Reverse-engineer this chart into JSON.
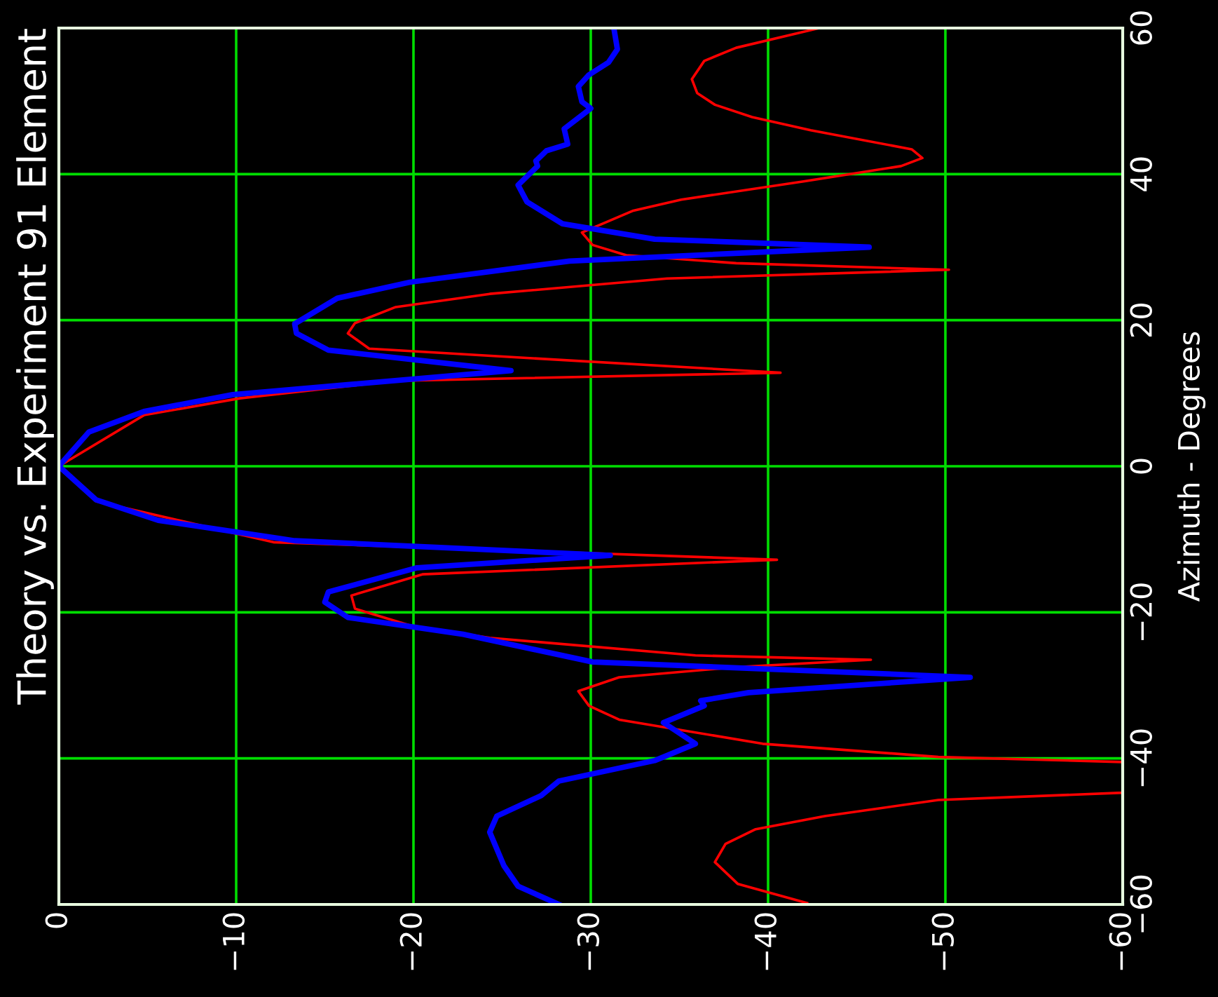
{
  "chart_data": {
    "type": "line",
    "title": "Theory vs. Experiment 91 Element",
    "ylabel": "Azimuth - Degrees",
    "ylim": [
      -60,
      60
    ],
    "yticks": [
      {
        "value": -60,
        "label": "−60"
      },
      {
        "value": -40,
        "label": "−40"
      },
      {
        "value": -20,
        "label": "−20"
      },
      0,
      20,
      40,
      60
    ],
    "xlim": [
      0,
      -60
    ],
    "xticks": [
      {
        "value": -60,
        "label": "−60"
      },
      {
        "value": -50,
        "label": "−50"
      },
      {
        "value": -40,
        "label": "−40"
      },
      {
        "value": -30,
        "label": "−30"
      },
      {
        "value": -20,
        "label": "−20"
      },
      {
        "value": -10,
        "label": "−10"
      },
      0
    ],
    "grid": true,
    "marker": "none",
    "line_style": "solid",
    "series": [
      {
        "color": "#ff0000",
        "values": [
          -59.8,
          -57.2,
          -54.2,
          -51.7,
          -49.7,
          -47.9,
          -45.7,
          -44.7,
          -40.5,
          -39.8,
          -38.0,
          -34.7,
          -32.8,
          -30.8,
          -28.9,
          -27.5,
          -26.5,
          -25.9,
          -23.5,
          -21.8,
          -19.5,
          -17.7,
          -14.8,
          -12.8,
          -10.4,
          -4.8,
          0,
          7.0,
          9.3,
          11.7,
          12.8,
          16.1,
          18.2,
          19.6,
          21.8,
          23.6,
          25.7,
          26.9,
          27.8,
          28.9,
          30.3,
          32.0,
          35.0,
          36.5,
          39.0,
          41.1,
          42.2,
          43.4,
          46.0,
          47.8,
          49.5,
          51.1,
          53.0,
          55.5,
          57.3,
          60.0
        ],
        "x": [
          -42.2,
          -38.3,
          -37.0,
          -37.6,
          -39.3,
          -43.2,
          -49.6,
          -60,
          -60,
          -49.6,
          -39.7,
          -31.6,
          -29.9,
          -29.3,
          -31.6,
          -38.2,
          -45.8,
          -35.9,
          -24.3,
          -19.8,
          -16.7,
          -16.5,
          -20.5,
          -40.5,
          -12.1,
          -2.1,
          0,
          -4.8,
          -10.2,
          -19.0,
          -40.7,
          -17.5,
          -16.3,
          -16.7,
          -19.0,
          -24.3,
          -34.3,
          -50.2,
          -38.2,
          -32.0,
          -30.1,
          -29.5,
          -32.4,
          -35.1,
          -42.0,
          -47.5,
          -48.7,
          -48.1,
          -42.4,
          -39.1,
          -37.0,
          -36.0,
          -35.7,
          -36.4,
          -38.2,
          -42.9
        ]
      },
      {
        "color": "#0000ff",
        "values": [
          -60.0,
          -57.5,
          -54.7,
          -50.1,
          -47.9,
          -45.1,
          -43.1,
          -40.3,
          -38.0,
          -35.1,
          -32.8,
          -32.1,
          -31.0,
          -28.9,
          -26.8,
          -23.0,
          -20.7,
          -18.6,
          -17.2,
          -13.9,
          -12.2,
          -10.2,
          -7.4,
          -4.6,
          0,
          4.7,
          7.5,
          9.8,
          13.1,
          15.9,
          18.2,
          19.5,
          23.0,
          25.2,
          28.1,
          30.0,
          31.1,
          33.2,
          36.2,
          38.5,
          41.1,
          41.8,
          43.2,
          44.1,
          46.2,
          49.0,
          49.9,
          52.0,
          53.6,
          55.3,
          57.1,
          60.0
        ],
        "x": [
          -28.2,
          -25.9,
          -25.1,
          -24.3,
          -24.7,
          -27.2,
          -28.2,
          -33.6,
          -35.9,
          -34.1,
          -36.4,
          -36.2,
          -38.9,
          -51.4,
          -30.1,
          -22.8,
          -16.3,
          -15.0,
          -15.2,
          -20.2,
          -31.1,
          -13.3,
          -5.6,
          -2.1,
          0,
          -1.7,
          -4.8,
          -9.8,
          -25.5,
          -15.2,
          -13.4,
          -13.3,
          -15.7,
          -19.8,
          -28.8,
          -45.7,
          -33.6,
          -28.4,
          -26.4,
          -25.9,
          -27.0,
          -26.9,
          -27.5,
          -28.7,
          -28.5,
          -30.0,
          -29.5,
          -29.3,
          -29.9,
          -31.0,
          -31.5,
          -31.3
        ]
      }
    ]
  }
}
